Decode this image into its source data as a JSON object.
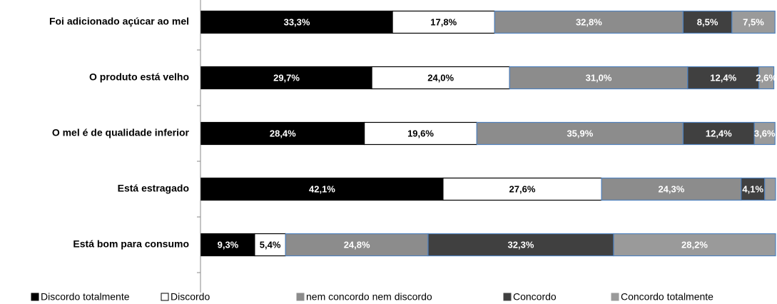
{
  "chart_data": {
    "type": "stacked_bar_horizontal",
    "categories": [
      "Foi adicionado açúcar ao mel",
      "O produto está velho",
      "O mel é de qualidade inferior",
      "Está estragado",
      "Está bom para consumo"
    ],
    "series": [
      {
        "name": "Discordo totalmente",
        "color": "#000000",
        "values": [
          33.3,
          29.7,
          28.4,
          42.1,
          9.3
        ],
        "value_labels": [
          "33,3%",
          "29,7%",
          "28,4%",
          "42,1%",
          "9,3%"
        ]
      },
      {
        "name": "Discordo",
        "color": "#ffffff",
        "values": [
          17.8,
          24.0,
          19.6,
          27.6,
          5.4
        ],
        "value_labels": [
          "17,8%",
          "24,0%",
          "19,6%",
          "27,6%",
          "5,4%"
        ]
      },
      {
        "name": "nem concordo nem discordo",
        "color": "#8c8c8c",
        "values": [
          32.8,
          31.0,
          35.9,
          24.3,
          24.8
        ],
        "value_labels": [
          "32,8%",
          "31,0%",
          "35,9%",
          "24,3%",
          "24,8%"
        ]
      },
      {
        "name": "Concordo",
        "color": "#404040",
        "values": [
          8.5,
          12.4,
          12.4,
          4.1,
          32.3
        ],
        "value_labels": [
          "8,5%",
          "12,4%",
          "12,4%",
          "4,1%",
          "32,3%"
        ]
      },
      {
        "name": "Concordo totalmente",
        "color": "#9a9a9a",
        "values": [
          7.5,
          2.6,
          3.6,
          1.9,
          28.2
        ],
        "value_labels": [
          "7,5%",
          "2,6%",
          "3,6%",
          null,
          "28,2%"
        ]
      }
    ],
    "legend": "bottom"
  }
}
